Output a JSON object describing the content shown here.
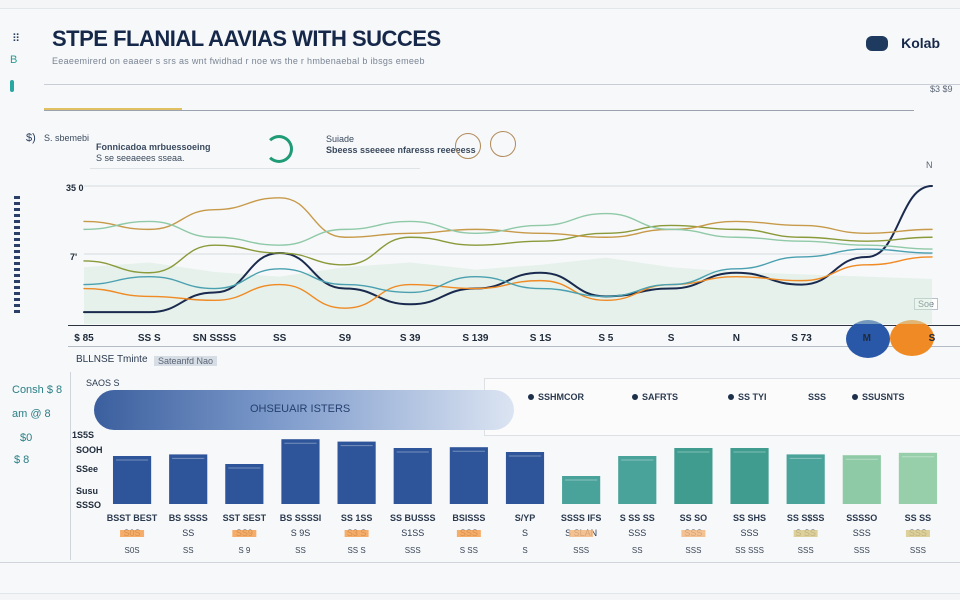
{
  "app": {
    "title": "STPE FLANIAL AAVIAS WITH SUCCES",
    "subtitle": "Eeaeemirerd on eaaeer s srs as wnt fwidhad r noe ws the r hmbenaebal b ibsgs emeeb",
    "user": "Kolab",
    "top_right_value": "$3 $9",
    "accent_navy": "#1f3a5f",
    "accent_orange": "#f08a24",
    "accent_teal": "#2a9d8f"
  },
  "sidebar": {
    "glyph_a": "⠿",
    "glyph_b": "B",
    "glyph_c": "$)"
  },
  "toolbar": {
    "left_label": "S. sbemebi",
    "group1_title": "Fonnicadoa mrbuessoeing",
    "group1_sub": "S se seeaeees sseaa.",
    "group2_title": "Suiade",
    "group2_sub": "Sbeess sseeeee nfaresss reeeeess",
    "badge": "N"
  },
  "left_stats": [
    {
      "label": "Consh $ 8"
    },
    {
      "label": "am @ 8"
    },
    {
      "label": "$0"
    },
    {
      "label": "$ 8"
    }
  ],
  "line_panel": {
    "y_label_top": "35 0",
    "y_label_mid": "7'",
    "callout": "Soe",
    "section_label": "BLLNSE Tminte",
    "section_tag": "Sateanfd Nao"
  },
  "bar_panel": {
    "header": "SAOS S",
    "banner_label": "OHSEUAIR ISTERS",
    "legend": [
      {
        "label": "SSHMCOR"
      },
      {
        "label": "SAFRTS"
      },
      {
        "label": "SS TYI"
      },
      {
        "label": "SSS"
      },
      {
        "label": "SSUSNTS"
      }
    ],
    "y_ticks": [
      "1S5S",
      "SOOH",
      "SSee",
      "Susu",
      "SSSO"
    ]
  },
  "chart_data": [
    {
      "type": "line",
      "title": "",
      "xlabel": "",
      "ylabel": "",
      "ylim": [
        0,
        35
      ],
      "categories": [
        "$ 85",
        "SS S",
        "SN SSSS",
        "SS",
        "S9",
        "S 39",
        "S 139",
        "S 1S",
        "S 5",
        "S",
        "N",
        "S 73",
        "M",
        "S"
      ],
      "series": [
        {
          "name": "navy",
          "color": "#1a2a4e",
          "values": [
            3,
            3,
            8,
            18,
            9,
            5,
            9,
            13,
            7,
            9,
            13,
            10,
            17,
            35
          ]
        },
        {
          "name": "orange",
          "color": "#f08a24",
          "values": [
            9,
            7,
            6,
            10,
            4,
            10,
            9,
            11,
            6,
            10,
            12,
            11,
            15,
            17
          ]
        },
        {
          "name": "olive",
          "color": "#8a9a3a",
          "values": [
            16,
            13,
            20,
            18,
            15,
            22,
            20,
            21,
            23,
            25,
            24,
            22,
            21,
            22
          ]
        },
        {
          "name": "teal",
          "color": "#4aa0b0",
          "values": [
            10,
            12,
            9,
            14,
            10,
            8,
            12,
            9,
            7,
            10,
            14,
            17,
            19,
            18
          ]
        },
        {
          "name": "tan",
          "color": "#c79a4a",
          "values": [
            26,
            24,
            29,
            32,
            22,
            23,
            24,
            23,
            22,
            24,
            26,
            25,
            23,
            24
          ]
        },
        {
          "name": "mint",
          "color": "#8fc9a8",
          "values": [
            24,
            26,
            22,
            20,
            24,
            26,
            23,
            25,
            28,
            24,
            22,
            21,
            20,
            19
          ]
        }
      ]
    },
    {
      "type": "bar",
      "title": "",
      "ylim": [
        0,
        80
      ],
      "categories": [
        "BSST BEST",
        "BS SSSS",
        "SST SEST",
        "BS SSSSI",
        "SS 1SS",
        "SS BUSSS",
        "BSISSS",
        "S/YP",
        "SSSS IFS",
        "S SS SS",
        "SS SO",
        "SS SHS",
        "SS S$SS",
        "SSSSO",
        "SS SS"
      ],
      "values": [
        60,
        62,
        50,
        81,
        78,
        70,
        71,
        65,
        35,
        60,
        70,
        70,
        62,
        61,
        64
      ],
      "bar_colors": [
        "#2e559a",
        "#2e559a",
        "#2e559a",
        "#2e559a",
        "#2e559a",
        "#2e559a",
        "#2e559a",
        "#2e559a",
        "#4aa39a",
        "#4aa39a",
        "#3f9c8e",
        "#3f9c8e",
        "#4aa39a",
        "#8fcaa6",
        "#96cfaa"
      ],
      "sub_labels": [
        "S0S",
        "SS",
        "SS9",
        "S 9S",
        "S3 S",
        "S1SS",
        "SSS",
        "S",
        "S SLAN",
        "SSS",
        "SSS",
        "SSS",
        "S SS",
        "SSS",
        "SSS"
      ],
      "foot_labels": [
        "S0S",
        "SS",
        "S 9",
        "SS",
        "SS S",
        "SSS",
        "S SS",
        "S",
        "SSS",
        "SS",
        "SSS",
        "SS SSS",
        "SSS",
        "SSS",
        "SSS"
      ]
    }
  ]
}
